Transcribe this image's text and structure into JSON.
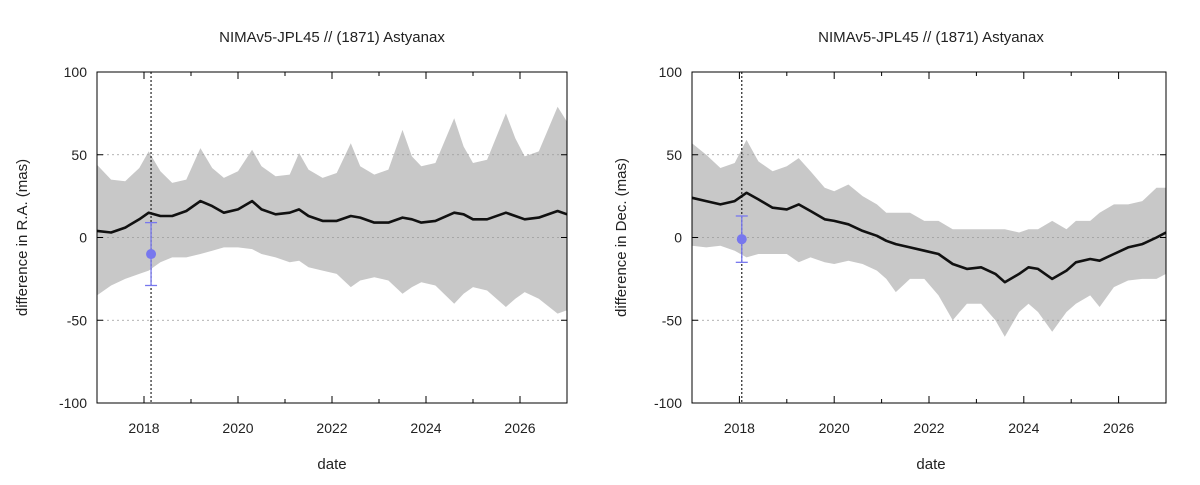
{
  "chart_data": [
    {
      "type": "line",
      "title": "NIMAv5-JPL45 // (1871) Astyanax",
      "xlabel": "date",
      "ylabel": "difference in R.A. (mas)",
      "xlim": [
        2017.0,
        2027.0
      ],
      "ylim": [
        -100,
        100
      ],
      "xticks": [
        2018,
        2020,
        2022,
        2024,
        2026
      ],
      "yticks": [
        -100,
        -50,
        0,
        50,
        100
      ],
      "grid": "horizontal dotted",
      "series": [
        {
          "kind": "band",
          "x": [
            2017.0,
            2017.3,
            2017.6,
            2017.9,
            2018.1,
            2018.35,
            2018.6,
            2018.9,
            2019.2,
            2019.45,
            2019.7,
            2020.0,
            2020.3,
            2020.5,
            2020.8,
            2021.1,
            2021.3,
            2021.5,
            2021.8,
            2022.1,
            2022.4,
            2022.6,
            2022.9,
            2023.2,
            2023.5,
            2023.7,
            2023.9,
            2024.2,
            2024.6,
            2024.8,
            2025.0,
            2025.3,
            2025.7,
            2025.9,
            2026.1,
            2026.4,
            2026.8,
            2027.0
          ],
          "upper": [
            44,
            35,
            34,
            42,
            52,
            40,
            33,
            35,
            54,
            42,
            36,
            40,
            53,
            43,
            37,
            38,
            51,
            41,
            36,
            39,
            57,
            43,
            38,
            41,
            65,
            49,
            43,
            45,
            72,
            55,
            45,
            47,
            75,
            60,
            49,
            52,
            79,
            70
          ],
          "lower": [
            -35,
            -29,
            -25,
            -22,
            -20,
            -15,
            -12,
            -12,
            -10,
            -8,
            -6,
            -6,
            -7,
            -10,
            -12,
            -15,
            -14,
            -18,
            -20,
            -22,
            -30,
            -26,
            -24,
            -26,
            -34,
            -30,
            -27,
            -29,
            -40,
            -34,
            -30,
            -32,
            -42,
            -37,
            -33,
            -37,
            -46,
            -44
          ]
        },
        {
          "kind": "line",
          "x": [
            2017.0,
            2017.3,
            2017.6,
            2017.9,
            2018.1,
            2018.35,
            2018.6,
            2018.9,
            2019.2,
            2019.45,
            2019.7,
            2020.0,
            2020.3,
            2020.5,
            2020.8,
            2021.1,
            2021.3,
            2021.5,
            2021.8,
            2022.1,
            2022.4,
            2022.6,
            2022.9,
            2023.2,
            2023.5,
            2023.7,
            2023.9,
            2024.2,
            2024.6,
            2024.8,
            2025.0,
            2025.3,
            2025.7,
            2025.9,
            2026.1,
            2026.4,
            2026.8,
            2027.0
          ],
          "y": [
            4,
            3,
            6,
            11,
            15,
            13,
            13,
            16,
            22,
            19,
            15,
            17,
            22,
            17,
            14,
            15,
            17,
            13,
            10,
            10,
            13,
            12,
            9,
            9,
            12,
            11,
            9,
            10,
            15,
            14,
            11,
            11,
            15,
            13,
            11,
            12,
            16,
            14
          ]
        }
      ],
      "events": [
        {
          "x": 2018.15
        }
      ],
      "observation": {
        "x": 2018.15,
        "y": -10,
        "err": 19,
        "color": "#7777ee"
      }
    },
    {
      "type": "line",
      "title": "NIMAv5-JPL45 // (1871) Astyanax",
      "xlabel": "date",
      "ylabel": "difference in Dec. (mas)",
      "xlim": [
        2017.0,
        2027.0
      ],
      "ylim": [
        -100,
        100
      ],
      "xticks": [
        2018,
        2020,
        2022,
        2024,
        2026
      ],
      "yticks": [
        -100,
        -50,
        0,
        50,
        100
      ],
      "grid": "horizontal dotted",
      "series": [
        {
          "kind": "band",
          "x": [
            2017.0,
            2017.3,
            2017.6,
            2017.9,
            2018.15,
            2018.4,
            2018.7,
            2019.0,
            2019.25,
            2019.5,
            2019.8,
            2020.0,
            2020.3,
            2020.6,
            2020.9,
            2021.1,
            2021.3,
            2021.6,
            2021.9,
            2022.2,
            2022.5,
            2022.8,
            2023.1,
            2023.4,
            2023.6,
            2023.9,
            2024.1,
            2024.3,
            2024.6,
            2024.9,
            2025.1,
            2025.4,
            2025.6,
            2025.9,
            2026.2,
            2026.5,
            2026.8,
            2027.0
          ],
          "upper": [
            57,
            50,
            42,
            45,
            59,
            46,
            40,
            43,
            48,
            40,
            30,
            28,
            32,
            25,
            20,
            15,
            15,
            15,
            10,
            10,
            5,
            5,
            5,
            5,
            5,
            3,
            5,
            5,
            10,
            5,
            10,
            10,
            15,
            20,
            20,
            22,
            30,
            30
          ],
          "lower": [
            -5,
            -6,
            -5,
            -8,
            -12,
            -10,
            -10,
            -10,
            -15,
            -12,
            -15,
            -16,
            -14,
            -16,
            -20,
            -25,
            -33,
            -25,
            -25,
            -35,
            -50,
            -40,
            -40,
            -50,
            -60,
            -45,
            -40,
            -45,
            -57,
            -45,
            -40,
            -35,
            -42,
            -30,
            -26,
            -25,
            -25,
            -22
          ]
        },
        {
          "kind": "line",
          "x": [
            2017.0,
            2017.3,
            2017.6,
            2017.9,
            2018.15,
            2018.4,
            2018.7,
            2019.0,
            2019.25,
            2019.5,
            2019.8,
            2020.0,
            2020.3,
            2020.6,
            2020.9,
            2021.1,
            2021.3,
            2021.6,
            2021.9,
            2022.2,
            2022.5,
            2022.8,
            2023.1,
            2023.4,
            2023.6,
            2023.9,
            2024.1,
            2024.3,
            2024.6,
            2024.9,
            2025.1,
            2025.4,
            2025.6,
            2025.9,
            2026.2,
            2026.5,
            2026.8,
            2027.0
          ],
          "y": [
            24,
            22,
            20,
            22,
            27,
            23,
            18,
            17,
            20,
            16,
            11,
            10,
            8,
            4,
            1,
            -2,
            -4,
            -6,
            -8,
            -10,
            -16,
            -19,
            -18,
            -22,
            -27,
            -22,
            -18,
            -19,
            -25,
            -20,
            -15,
            -13,
            -14,
            -10,
            -6,
            -4,
            0,
            3
          ]
        }
      ],
      "events": [
        {
          "x": 2018.05
        }
      ],
      "observation": {
        "x": 2018.05,
        "y": -1,
        "err": 14,
        "color": "#7777ee"
      }
    }
  ]
}
